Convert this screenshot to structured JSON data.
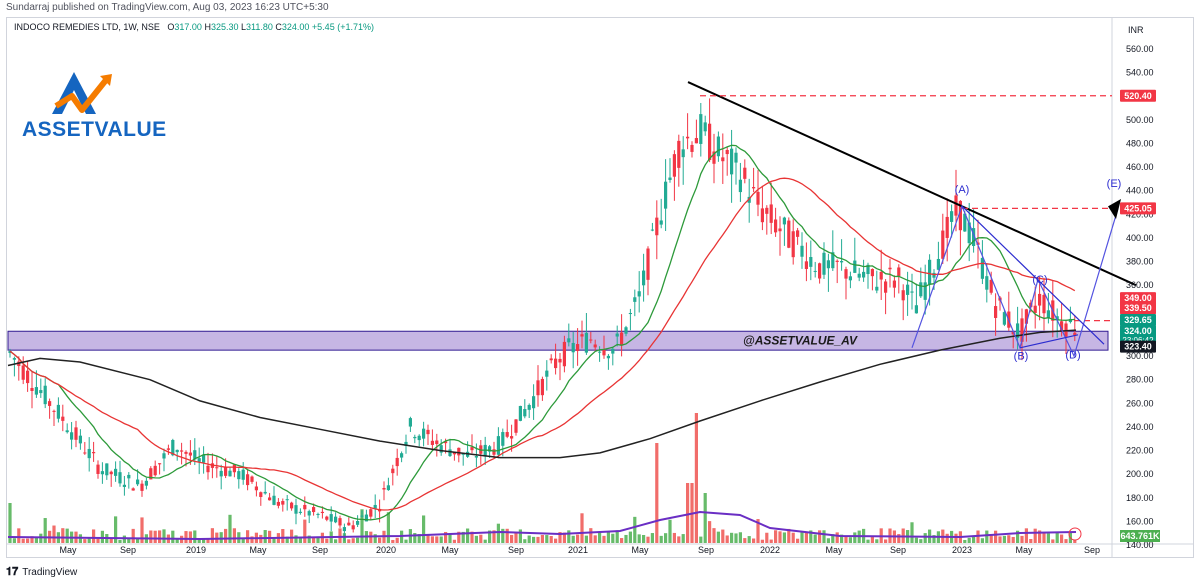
{
  "publisher_line": "Sundarraj published on TradingView.com, Aug 03, 2023 16:23 UTC+5:30",
  "symbol": {
    "name": "INDOCO REMEDIES LTD, 1W, NSE",
    "o_label": "O",
    "o": "317.00",
    "h_label": "H",
    "h": "325.30",
    "l_label": "L",
    "l": "311.80",
    "c_label": "C",
    "c": "324.00",
    "change": "+5.45 (+1.71%)"
  },
  "currency": "INR",
  "logo_text": "ASSETVALUE",
  "footer_brand": "TradingView",
  "zone_label": "@ASSETVALUE_AV",
  "volume_badge": "643.761K",
  "colors": {
    "up": "#22ab94",
    "down": "#f23645",
    "ma_green": "#2d9a3a",
    "ma_red": "#e83434",
    "ma_black": "#222222",
    "zone": "#b39ddb",
    "wave": "#2c2ccf",
    "volume_ma": "#6a2ec4",
    "logo_blue": "#1565c0",
    "logo_orange": "#f57c00"
  },
  "chart_data": {
    "type": "candlestick",
    "y_axis_ticks": [
      140,
      160,
      180,
      200,
      220,
      240,
      260,
      280,
      300,
      320,
      340,
      360,
      380,
      400,
      420,
      440,
      460,
      480,
      500,
      520,
      540,
      560
    ],
    "ylim": [
      126,
      574
    ],
    "x_tick_labels": [
      "May",
      "Sep",
      "2019",
      "May",
      "Sep",
      "2020",
      "May",
      "Sep",
      "2021",
      "May",
      "Sep",
      "2022",
      "May",
      "Sep",
      "2023",
      "May",
      "Sep"
    ],
    "price_badges": [
      {
        "label": "520.40",
        "value": 520.4,
        "color": "#f23645"
      },
      {
        "label": "425.05",
        "value": 425.05,
        "color": "#f23645"
      },
      {
        "label": "349.00",
        "value": 349.0,
        "color": "#f23645"
      },
      {
        "label": "339.50",
        "value": 339.5,
        "color": "#f23645"
      },
      {
        "label": "329.65",
        "value": 329.65,
        "color": "#089981"
      },
      {
        "label": "324.00",
        "value": 324.0,
        "color": "#089981",
        "sub": "23:06:42"
      },
      {
        "label": "323.40",
        "value": 323.4,
        "color": "#131722"
      }
    ],
    "horizontal_levels": [
      520.4,
      425.05,
      330
    ],
    "support_zone": [
      305,
      321
    ],
    "wave_labels": [
      {
        "label": "(A)",
        "date": "2022-11",
        "value": 438
      },
      {
        "label": "(B)",
        "date": "2023-04",
        "value": 297
      },
      {
        "label": "(C)",
        "date": "2023-06",
        "value": 362
      },
      {
        "label": "(D)",
        "date": "2023-09",
        "value": 298
      },
      {
        "label": "(E)",
        "date": "2023-10",
        "value": 443
      }
    ],
    "series": [
      {
        "name": "",
        "type": "sma_short"
      },
      {
        "name": "",
        "type": "sma_medium"
      },
      {
        "name": "",
        "type": "sma_long"
      }
    ]
  }
}
